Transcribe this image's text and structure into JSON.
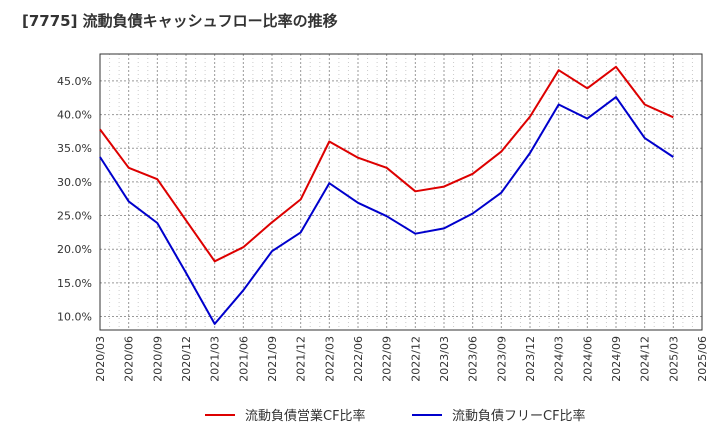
{
  "chart_data": {
    "type": "line",
    "title": "[7775]  流動負債キャッシュフロー比率の推移",
    "x": [
      "2020/03",
      "2020/06",
      "2020/09",
      "2020/12",
      "2021/03",
      "2021/06",
      "2021/09",
      "2021/12",
      "2022/03",
      "2022/06",
      "2022/09",
      "2022/12",
      "2023/03",
      "2023/06",
      "2023/09",
      "2023/12",
      "2024/03",
      "2024/06",
      "2024/09",
      "2024/12",
      "2025/03",
      "2025/06"
    ],
    "series": [
      {
        "name": "流動負債営業CF比率",
        "color": "#dd0000",
        "values": [
          37.8,
          32.1,
          30.4,
          24.3,
          18.2,
          20.3,
          24.0,
          27.4,
          36.0,
          33.6,
          32.1,
          28.6,
          29.3,
          31.2,
          34.5,
          39.7,
          46.6,
          43.9,
          47.1,
          41.5,
          39.6,
          null
        ]
      },
      {
        "name": "流動負債フリーCF比率",
        "color": "#0000cc",
        "values": [
          33.7,
          27.1,
          23.9,
          16.5,
          8.9,
          13.9,
          19.7,
          22.5,
          29.8,
          26.9,
          24.9,
          22.3,
          23.1,
          25.3,
          28.4,
          34.3,
          41.5,
          39.4,
          42.6,
          36.5,
          33.7,
          null
        ]
      }
    ],
    "y_ticks": [
      "10.0%",
      "15.0%",
      "20.0%",
      "25.0%",
      "30.0%",
      "35.0%",
      "40.0%",
      "45.0%"
    ],
    "ylim": [
      8.0,
      49.0
    ],
    "grid": true,
    "legend_position": "bottom"
  }
}
